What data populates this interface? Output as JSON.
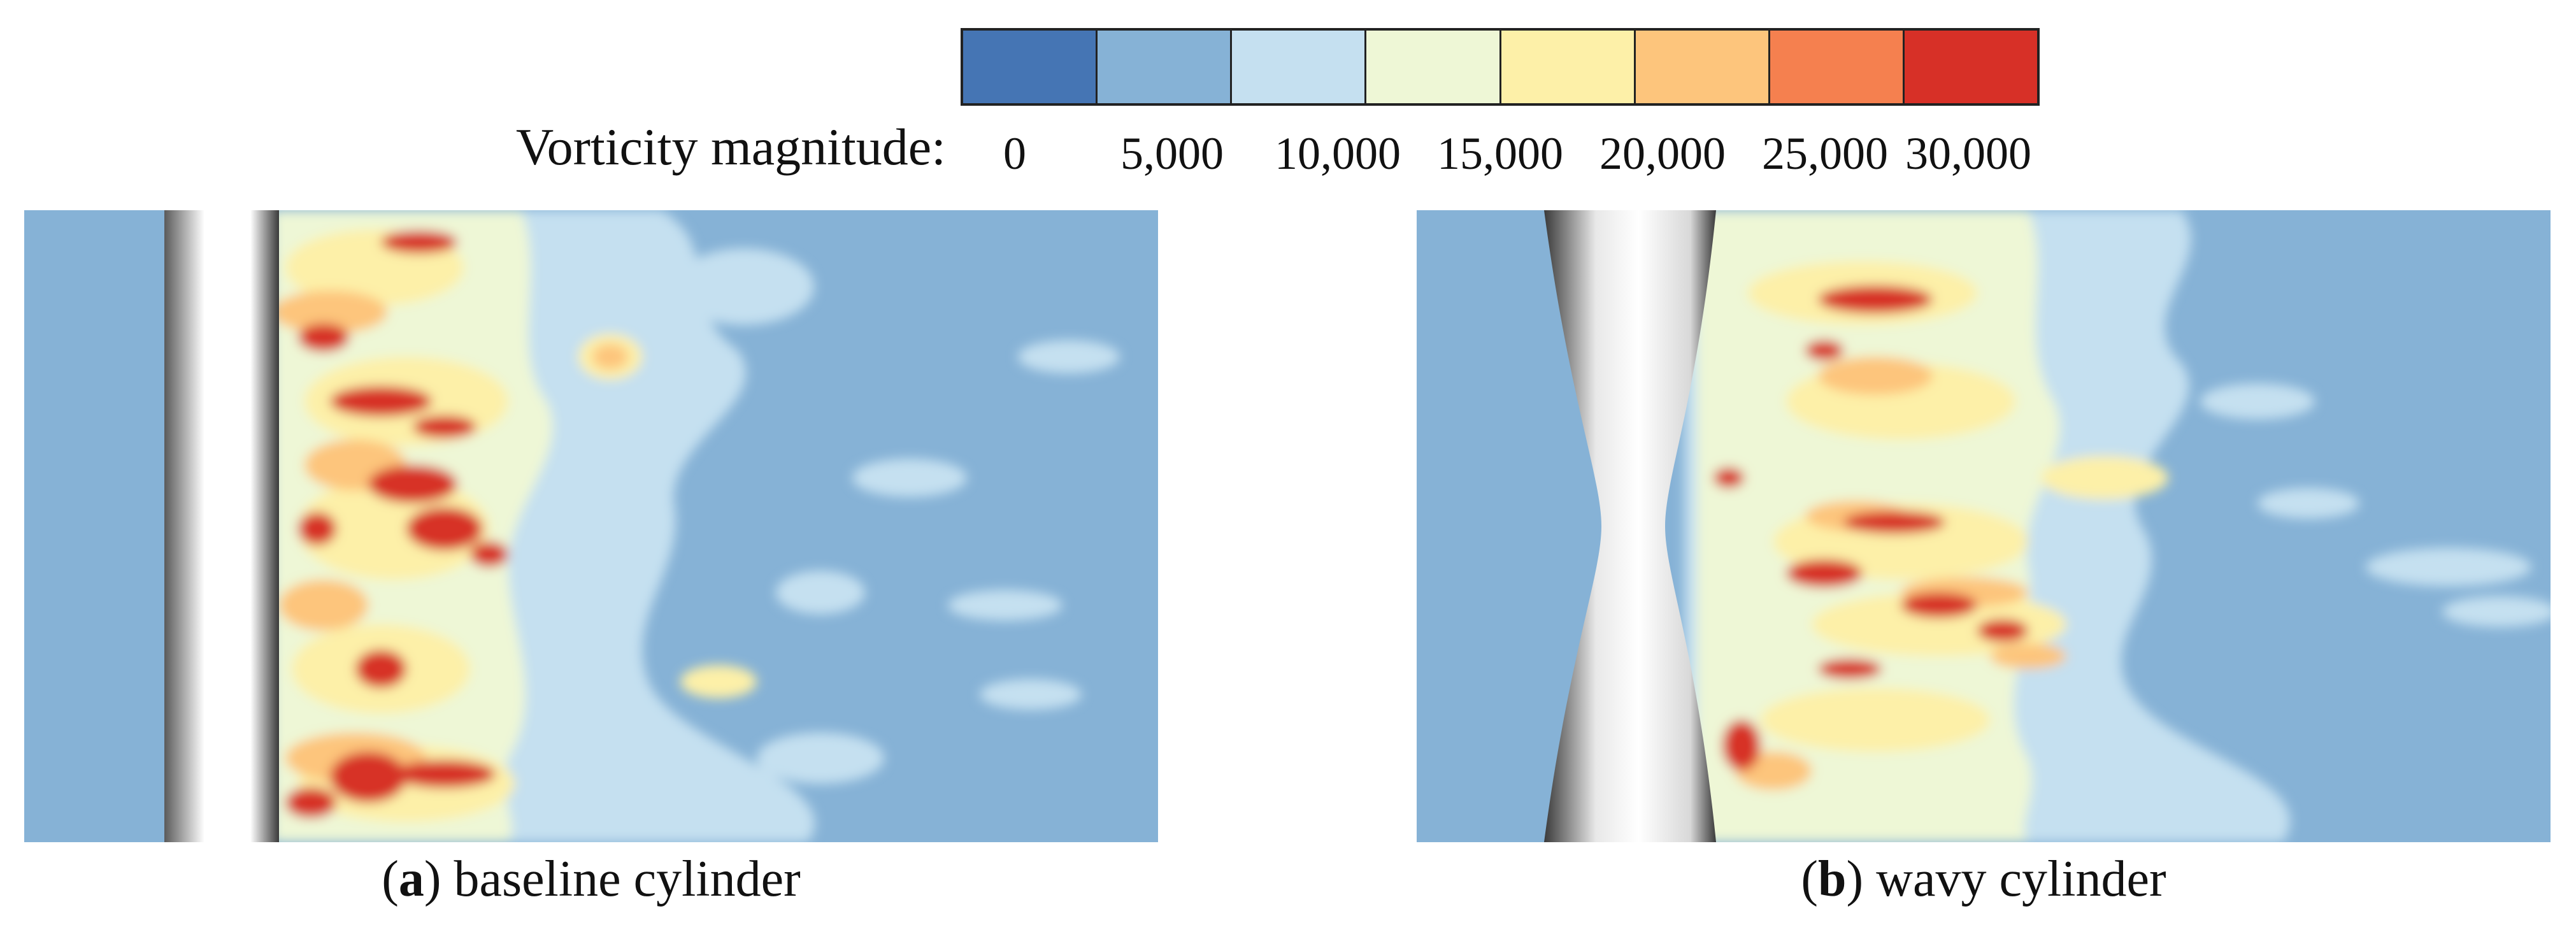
{
  "colorbar": {
    "title": "Vorticity magnitude:",
    "ticks": [
      "0",
      "5,000",
      "10,000",
      "15,000",
      "20,000",
      "25,000",
      "30,000"
    ],
    "colors": [
      "#4575b4",
      "#86b2d6",
      "#c5e0f0",
      "#eef7d6",
      "#fdf0a8",
      "#fdc57c",
      "#f5804f",
      "#d73027"
    ]
  },
  "panels": [
    {
      "id": "a",
      "caption_letter": "a",
      "caption_text": "baseline cylinder"
    },
    {
      "id": "b",
      "caption_letter": "b",
      "caption_text": "wavy cylinder"
    }
  ]
}
